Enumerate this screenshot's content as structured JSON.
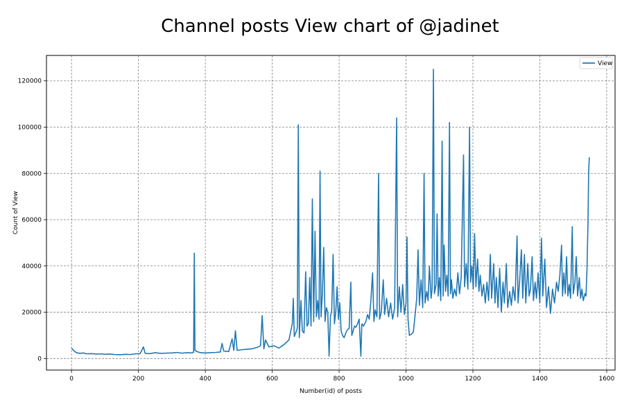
{
  "chart_data": {
    "type": "line",
    "title": "Channel posts View chart of @jadinet",
    "xlabel": "Number(id) of posts",
    "ylabel": "Count of View",
    "xlim": [
      -75,
      1625
    ],
    "ylim": [
      -5000,
      131000
    ],
    "xticks": [
      0,
      200,
      400,
      600,
      800,
      1000,
      1200,
      1400,
      1600
    ],
    "yticks": [
      0,
      20000,
      40000,
      60000,
      80000,
      100000,
      120000
    ],
    "grid": true,
    "legend_position": "top-right",
    "series": [
      {
        "name": "View",
        "color": "#1f77b4",
        "points": [
          [
            0,
            4500
          ],
          [
            8,
            3200
          ],
          [
            15,
            2500
          ],
          [
            25,
            2200
          ],
          [
            35,
            2400
          ],
          [
            45,
            2000
          ],
          [
            60,
            2100
          ],
          [
            75,
            1900
          ],
          [
            90,
            2000
          ],
          [
            100,
            1800
          ],
          [
            115,
            1900
          ],
          [
            130,
            1700
          ],
          [
            145,
            1600
          ],
          [
            160,
            1800
          ],
          [
            175,
            1700
          ],
          [
            190,
            2000
          ],
          [
            205,
            2100
          ],
          [
            215,
            5000
          ],
          [
            220,
            2200
          ],
          [
            235,
            2100
          ],
          [
            250,
            2500
          ],
          [
            265,
            2200
          ],
          [
            280,
            2300
          ],
          [
            300,
            2400
          ],
          [
            315,
            2600
          ],
          [
            330,
            2300
          ],
          [
            345,
            2500
          ],
          [
            360,
            2400
          ],
          [
            365,
            2700
          ],
          [
            367,
            45500
          ],
          [
            369,
            3500
          ],
          [
            375,
            3000
          ],
          [
            385,
            2500
          ],
          [
            400,
            2400
          ],
          [
            415,
            2500
          ],
          [
            430,
            2600
          ],
          [
            445,
            2800
          ],
          [
            450,
            6500
          ],
          [
            455,
            3200
          ],
          [
            470,
            3000
          ],
          [
            480,
            8500
          ],
          [
            485,
            3500
          ],
          [
            490,
            12000
          ],
          [
            495,
            3500
          ],
          [
            510,
            3800
          ],
          [
            525,
            4000
          ],
          [
            540,
            4200
          ],
          [
            555,
            4800
          ],
          [
            565,
            5500
          ],
          [
            570,
            18500
          ],
          [
            575,
            4200
          ],
          [
            580,
            8000
          ],
          [
            590,
            5000
          ],
          [
            605,
            5500
          ],
          [
            620,
            4500
          ],
          [
            635,
            6000
          ],
          [
            650,
            8000
          ],
          [
            660,
            15000
          ],
          [
            663,
            26000
          ],
          [
            666,
            9500
          ],
          [
            670,
            11000
          ],
          [
            675,
            13000
          ],
          [
            678,
            101000
          ],
          [
            681,
            9000
          ],
          [
            686,
            25000
          ],
          [
            690,
            12000
          ],
          [
            695,
            11000
          ],
          [
            700,
            37500
          ],
          [
            704,
            14000
          ],
          [
            708,
            15000
          ],
          [
            712,
            35000
          ],
          [
            716,
            14000
          ],
          [
            720,
            69000
          ],
          [
            724,
            16000
          ],
          [
            728,
            55000
          ],
          [
            732,
            18000
          ],
          [
            736,
            25000
          ],
          [
            740,
            17000
          ],
          [
            743,
            81000
          ],
          [
            746,
            18000
          ],
          [
            750,
            28000
          ],
          [
            754,
            48000
          ],
          [
            758,
            16000
          ],
          [
            762,
            22000
          ],
          [
            766,
            20000
          ],
          [
            770,
            1000
          ],
          [
            774,
            18000
          ],
          [
            778,
            21000
          ],
          [
            782,
            45000
          ],
          [
            786,
            15000
          ],
          [
            790,
            20000
          ],
          [
            794,
            31000
          ],
          [
            798,
            17000
          ],
          [
            802,
            24000
          ],
          [
            806,
            12000
          ],
          [
            810,
            10000
          ],
          [
            815,
            9000
          ],
          [
            820,
            11000
          ],
          [
            825,
            12500
          ],
          [
            830,
            13000
          ],
          [
            835,
            33000
          ],
          [
            838,
            10000
          ],
          [
            842,
            12000
          ],
          [
            846,
            14000
          ],
          [
            850,
            13500
          ],
          [
            855,
            15000
          ],
          [
            860,
            17000
          ],
          [
            865,
            1000
          ],
          [
            868,
            15000
          ],
          [
            873,
            14000
          ],
          [
            880,
            16000
          ],
          [
            885,
            19000
          ],
          [
            890,
            17000
          ],
          [
            895,
            25000
          ],
          [
            900,
            37000
          ],
          [
            904,
            16000
          ],
          [
            908,
            21000
          ],
          [
            913,
            18000
          ],
          [
            918,
            80000
          ],
          [
            921,
            17000
          ],
          [
            926,
            20000
          ],
          [
            932,
            34000
          ],
          [
            936,
            19000
          ],
          [
            942,
            26000
          ],
          [
            948,
            18000
          ],
          [
            954,
            24000
          ],
          [
            960,
            17000
          ],
          [
            966,
            22000
          ],
          [
            972,
            104000
          ],
          [
            975,
            18000
          ],
          [
            980,
            31000
          ],
          [
            985,
            20000
          ],
          [
            990,
            32000
          ],
          [
            995,
            19000
          ],
          [
            1000,
            24000
          ],
          [
            1003,
            52500
          ],
          [
            1006,
            17000
          ],
          [
            1010,
            10000
          ],
          [
            1016,
            10500
          ],
          [
            1022,
            11500
          ],
          [
            1028,
            20000
          ],
          [
            1032,
            26000
          ],
          [
            1036,
            47000
          ],
          [
            1040,
            23000
          ],
          [
            1045,
            34000
          ],
          [
            1050,
            22000
          ],
          [
            1054,
            80000
          ],
          [
            1057,
            24000
          ],
          [
            1062,
            29000
          ],
          [
            1066,
            25000
          ],
          [
            1070,
            40000
          ],
          [
            1075,
            26000
          ],
          [
            1078,
            30000
          ],
          [
            1082,
            125000
          ],
          [
            1085,
            28000
          ],
          [
            1090,
            32000
          ],
          [
            1093,
            62500
          ],
          [
            1096,
            27000
          ],
          [
            1100,
            35000
          ],
          [
            1104,
            25000
          ],
          [
            1108,
            94000
          ],
          [
            1111,
            27000
          ],
          [
            1114,
            49000
          ],
          [
            1118,
            29000
          ],
          [
            1122,
            36000
          ],
          [
            1126,
            27000
          ],
          [
            1130,
            102000
          ],
          [
            1133,
            28000
          ],
          [
            1136,
            34000
          ],
          [
            1140,
            26000
          ],
          [
            1145,
            30000
          ],
          [
            1150,
            27000
          ],
          [
            1155,
            37000
          ],
          [
            1160,
            28000
          ],
          [
            1165,
            35000
          ],
          [
            1172,
            88000
          ],
          [
            1175,
            31000
          ],
          [
            1180,
            41000
          ],
          [
            1185,
            30000
          ],
          [
            1190,
            100000
          ],
          [
            1193,
            33000
          ],
          [
            1197,
            40000
          ],
          [
            1201,
            30000
          ],
          [
            1205,
            54000
          ],
          [
            1209,
            31000
          ],
          [
            1214,
            43000
          ],
          [
            1218,
            29000
          ],
          [
            1222,
            36000
          ],
          [
            1227,
            27000
          ],
          [
            1232,
            32000
          ],
          [
            1237,
            24000
          ],
          [
            1242,
            33000
          ],
          [
            1247,
            25000
          ],
          [
            1252,
            45000
          ],
          [
            1256,
            26000
          ],
          [
            1262,
            41000
          ],
          [
            1266,
            24000
          ],
          [
            1270,
            35000
          ],
          [
            1275,
            22000
          ],
          [
            1280,
            39000
          ],
          [
            1285,
            20000
          ],
          [
            1290,
            33000
          ],
          [
            1294,
            24000
          ],
          [
            1300,
            41000
          ],
          [
            1304,
            22000
          ],
          [
            1310,
            29000
          ],
          [
            1315,
            23000
          ],
          [
            1320,
            31000
          ],
          [
            1326,
            25000
          ],
          [
            1332,
            53000
          ],
          [
            1335,
            24000
          ],
          [
            1340,
            34000
          ],
          [
            1345,
            47000
          ],
          [
            1349,
            26000
          ],
          [
            1354,
            45000
          ],
          [
            1358,
            24000
          ],
          [
            1364,
            41000
          ],
          [
            1368,
            27000
          ],
          [
            1372,
            30000
          ],
          [
            1377,
            44000
          ],
          [
            1381,
            25000
          ],
          [
            1386,
            33000
          ],
          [
            1390,
            26000
          ],
          [
            1395,
            37000
          ],
          [
            1400,
            24000
          ],
          [
            1405,
            52000
          ],
          [
            1409,
            27000
          ],
          [
            1415,
            43000
          ],
          [
            1420,
            22000
          ],
          [
            1426,
            31000
          ],
          [
            1432,
            19500
          ],
          [
            1438,
            30000
          ],
          [
            1444,
            24000
          ],
          [
            1450,
            33000
          ],
          [
            1455,
            29000
          ],
          [
            1460,
            36000
          ],
          [
            1465,
            49000
          ],
          [
            1468,
            27000
          ],
          [
            1472,
            37000
          ],
          [
            1476,
            28000
          ],
          [
            1480,
            44000
          ],
          [
            1484,
            27000
          ],
          [
            1488,
            32000
          ],
          [
            1492,
            26000
          ],
          [
            1497,
            57000
          ],
          [
            1500,
            28000
          ],
          [
            1505,
            33000
          ],
          [
            1509,
            44000
          ],
          [
            1513,
            27000
          ],
          [
            1518,
            35000
          ],
          [
            1522,
            26000
          ],
          [
            1526,
            30000
          ],
          [
            1530,
            25000
          ],
          [
            1535,
            28000
          ],
          [
            1538,
            27000
          ],
          [
            1541,
            38000
          ],
          [
            1544,
            58000
          ],
          [
            1546,
            80000
          ],
          [
            1548,
            87000
          ]
        ]
      }
    ]
  }
}
